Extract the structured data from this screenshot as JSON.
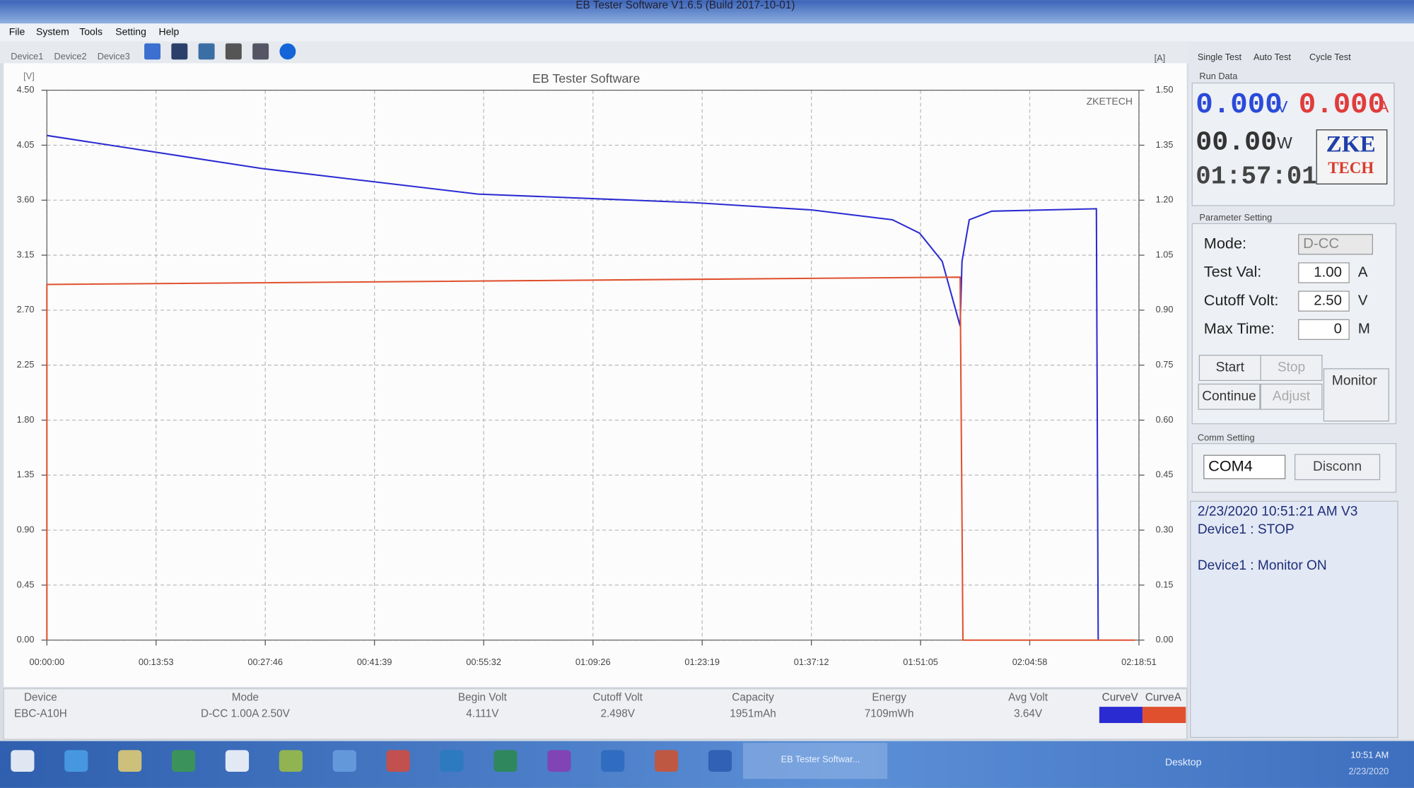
{
  "window_title": "EB Tester Software V1.6.5 (Build 2017-10-01)",
  "menu": [
    "File",
    "System",
    "Tools",
    "Setting",
    "Help"
  ],
  "device_tabs": [
    "Device1",
    "Device2",
    "Device3"
  ],
  "test_tabs": [
    "Single Test",
    "Auto Test",
    "Cycle Test"
  ],
  "chart_data": {
    "type": "line",
    "title": "EB Tester Software",
    "watermark": "ZKETECH",
    "y_axis_label": "[V]",
    "y2_axis_label": "[A]",
    "grid": true,
    "xlim": [
      0,
      8331
    ],
    "xticks": [
      {
        "value": 0,
        "label": "00:00:00"
      },
      {
        "value": 833,
        "label": "00:13:53"
      },
      {
        "value": 1666,
        "label": "00:27:46"
      },
      {
        "value": 2499,
        "label": "00:41:39"
      },
      {
        "value": 3332,
        "label": "00:55:32"
      },
      {
        "value": 4166,
        "label": "01:09:26"
      },
      {
        "value": 4999,
        "label": "01:23:19"
      },
      {
        "value": 5832,
        "label": "01:37:12"
      },
      {
        "value": 6665,
        "label": "01:51:05"
      },
      {
        "value": 7498,
        "label": "02:04:58"
      },
      {
        "value": 8331,
        "label": "02:18:51"
      }
    ],
    "ylim": [
      0,
      4.5
    ],
    "yticks": [
      {
        "value": 0,
        "label": "0.00"
      },
      0.45,
      {
        "value": 0.9,
        "label": "0.90"
      },
      1.35,
      {
        "value": 1.8,
        "label": "1.80"
      },
      2.25,
      {
        "value": 2.7,
        "label": "2.70"
      },
      3.15,
      {
        "value": 3.6,
        "label": "3.60"
      },
      4.05,
      {
        "value": 4.5,
        "label": "4.50"
      }
    ],
    "y2lim": [
      0,
      1.5
    ],
    "y2ticks": [
      {
        "value": 0,
        "label": "0.00"
      },
      0.15,
      {
        "value": 0.3,
        "label": "0.30"
      },
      0.45,
      {
        "value": 0.6,
        "label": "0.60"
      },
      0.75,
      {
        "value": 0.9,
        "label": "0.90"
      },
      1.05,
      {
        "value": 1.2,
        "label": "1.20"
      },
      1.35,
      {
        "value": 1.5,
        "label": "1.50"
      }
    ],
    "series": [
      {
        "name": "CurveV",
        "color": "#2b2bd2",
        "x": [
          0,
          1637,
          3287,
          4938,
          5832,
          6451,
          6658,
          6830,
          6967,
          6981,
          7036,
          7208,
          8006,
          8020
        ],
        "values": [
          4.13,
          3.86,
          3.65,
          3.58,
          3.52,
          3.44,
          3.33,
          3.1,
          2.57,
          3.1,
          3.44,
          3.51,
          3.53,
          0
        ]
      },
      {
        "name": "CurveA",
        "color": "#e0502e",
        "axis": "y2",
        "x": [
          0,
          0,
          6967,
          6988,
          8300
        ],
        "values": [
          0,
          0.97,
          0.99,
          0,
          0
        ]
      }
    ]
  },
  "run_data": {
    "label": "Run Data",
    "volt": "0.000",
    "volt_unit": "V",
    "amp": "0.000",
    "amp_unit": "A",
    "watt": "00.00",
    "watt_unit": "W",
    "time": "01:57:01",
    "logo_top": "ZKE",
    "logo_bottom": "TECH"
  },
  "parameters": {
    "label": "Parameter Setting",
    "rows": [
      [
        "Mode:",
        "D-CC",
        ""
      ],
      [
        "Test Val:",
        "1.00",
        "A"
      ],
      [
        "Cutoff Volt:",
        "2.50",
        "V"
      ],
      [
        "Max Time:",
        "0",
        "M"
      ]
    ],
    "buttons": [
      "Start",
      "Stop",
      "Continue",
      "Adjust",
      "Monitor"
    ]
  },
  "comm": {
    "label": "Comm Setting",
    "port": "COM4",
    "button": "Disconn"
  },
  "log": [
    "2/23/2020 10:51:21 AM  V3",
    "Device1 : STOP",
    "Device1 : Monitor ON"
  ],
  "summary": {
    "headers": [
      "Device",
      "Mode",
      "Begin Volt",
      "Cutoff Volt",
      "Capacity",
      "Energy",
      "Avg Volt"
    ],
    "values": [
      "EBC-A10H",
      "D-CC 1.00A 2.50V",
      "4.111V",
      "2.498V",
      "1951mAh",
      "7109mWh",
      "3.64V"
    ]
  },
  "taskbar": {
    "app": "EB Tester Softwar...",
    "desktop": "Desktop",
    "time": "10:51 AM",
    "date": "2/23/2020"
  }
}
